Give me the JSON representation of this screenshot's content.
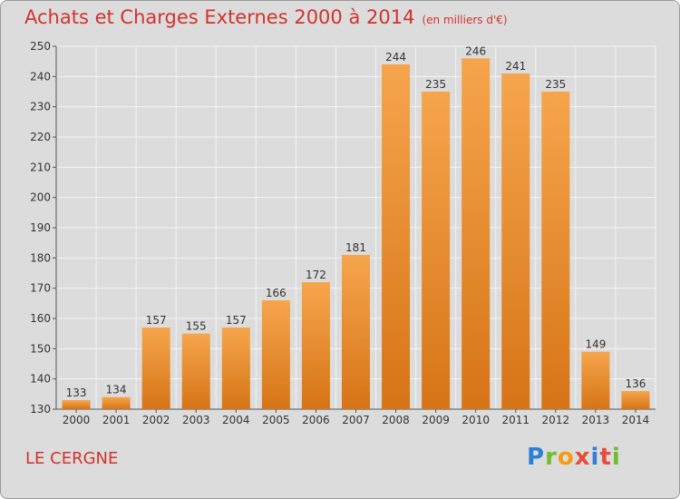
{
  "header": {
    "title": "Achats et Charges Externes 2000 à 2014",
    "subtitle": "(en milliers d'€)"
  },
  "footer": {
    "location": "LE CERGNE",
    "logo_text": "Proxiti"
  },
  "colors": {
    "bar_top": "#f6a54d",
    "bar_bottom": "#d67416",
    "title": "#d2332c",
    "grid": "#f4f4f4",
    "plot_bg": "#dcdcdc"
  },
  "chart_data": {
    "type": "bar",
    "categories": [
      "2000",
      "2001",
      "2002",
      "2003",
      "2004",
      "2005",
      "2006",
      "2007",
      "2008",
      "2009",
      "2010",
      "2011",
      "2012",
      "2013",
      "2014"
    ],
    "values": [
      133,
      134,
      157,
      155,
      157,
      166,
      172,
      181,
      244,
      235,
      246,
      241,
      235,
      149,
      136
    ],
    "ylim": [
      130,
      250
    ],
    "yticks": [
      130,
      140,
      150,
      160,
      170,
      180,
      190,
      200,
      210,
      220,
      230,
      240,
      250
    ],
    "grid": true,
    "data_labels": true
  }
}
